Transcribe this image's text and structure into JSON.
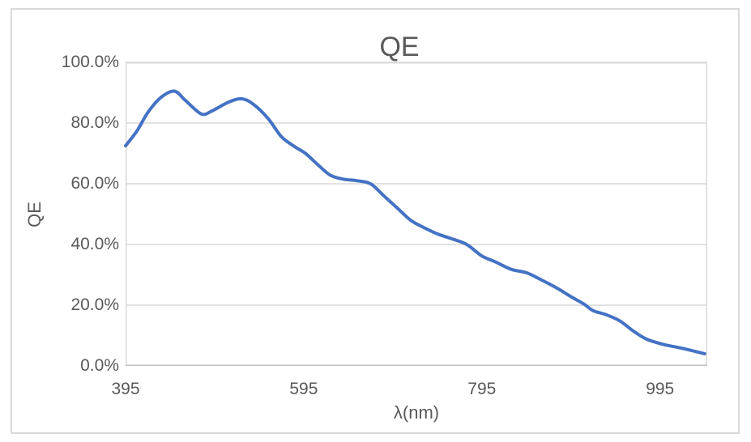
{
  "window": {
    "background": "#ffffff",
    "chart_border_color": "#d9d9d9"
  },
  "chart_data": {
    "type": "line",
    "title": "QE",
    "xlabel": "λ(nm)",
    "ylabel": "QE",
    "legend": "none",
    "grid": "horizontal-only",
    "xlim": [
      395,
      1048
    ],
    "ylim_pct": [
      0,
      100
    ],
    "x_ticks": {
      "values": [
        395,
        595,
        795,
        995
      ],
      "labels": [
        "395",
        "595",
        "795",
        "995"
      ]
    },
    "y_ticks": {
      "values": [
        0,
        20,
        40,
        60,
        80,
        100
      ],
      "labels": [
        "0.0%",
        "20.0%",
        "40.0%",
        "60.0%",
        "80.0%",
        "100.0%"
      ]
    },
    "colors": {
      "line": "#4472C4",
      "grid": "#d9d9d9",
      "axis": "#bfbfbf",
      "text": "#595959",
      "plot_border": "#d9d9d9"
    },
    "series": [
      {
        "name": "QE",
        "x": [
          395,
          408,
          420,
          435,
          450,
          462,
          480,
          492,
          510,
          525,
          538,
          555,
          570,
          585,
          597,
          610,
          625,
          640,
          655,
          670,
          685,
          700,
          715,
          727,
          745,
          762,
          778,
          795,
          810,
          828,
          845,
          862,
          880,
          895,
          910,
          920,
          935,
          950,
          965,
          980,
          1000,
          1020,
          1045
        ],
        "y_pct": [
          72.5,
          77.5,
          83.5,
          88.5,
          90.5,
          87.5,
          83.0,
          84.0,
          86.8,
          88.0,
          86.3,
          81.5,
          75.5,
          72.2,
          70.0,
          66.5,
          62.8,
          61.5,
          61.0,
          60.0,
          56.0,
          52.0,
          48.0,
          46.0,
          43.5,
          41.8,
          40.0,
          36.2,
          34.3,
          31.8,
          30.7,
          28.3,
          25.5,
          22.8,
          20.3,
          18.2,
          16.8,
          14.8,
          11.5,
          8.8,
          7.0,
          5.8,
          4.0
        ]
      }
    ]
  }
}
